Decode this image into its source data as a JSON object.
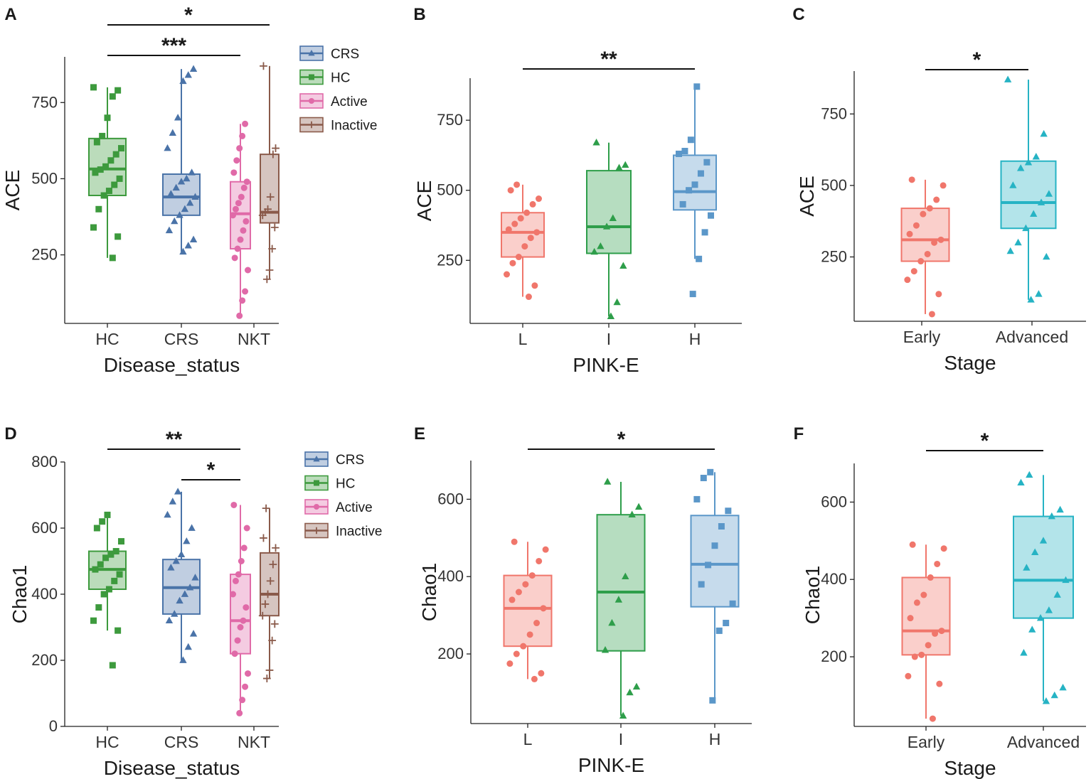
{
  "chart_data": [
    {
      "id": "A",
      "type": "box",
      "panel_label": "A",
      "xlabel": "Disease_status",
      "ylabel": "ACE",
      "categories": [
        "HC",
        "CRS",
        "NKT"
      ],
      "yticks": [
        250,
        500,
        750
      ],
      "ylim": [
        25,
        900
      ],
      "boxes": [
        {
          "category": "HC",
          "group": "HC",
          "q1": 445,
          "median": 532,
          "q3": 632,
          "whisker_low": 240,
          "whisker_high": 800,
          "points": [
            240,
            310,
            340,
            400,
            445,
            460,
            480,
            500,
            520,
            530,
            540,
            560,
            580,
            600,
            620,
            640,
            700,
            770,
            790,
            800
          ]
        },
        {
          "category": "CRS",
          "group": "CRS",
          "q1": 380,
          "median": 440,
          "q3": 515,
          "whisker_low": 260,
          "whisker_high": 860,
          "points": [
            260,
            280,
            300,
            330,
            360,
            380,
            400,
            420,
            440,
            450,
            470,
            490,
            500,
            520,
            600,
            650,
            700,
            820,
            840,
            860
          ]
        },
        {
          "category": "NKT",
          "group": "Active",
          "q1": 270,
          "median": 385,
          "q3": 490,
          "whisker_low": 50,
          "whisker_high": 680,
          "points": [
            50,
            100,
            130,
            200,
            240,
            270,
            300,
            330,
            360,
            380,
            400,
            420,
            440,
            470,
            490,
            520,
            560,
            600,
            640,
            680
          ]
        },
        {
          "category": "NKT",
          "group": "Inactive",
          "q1": 355,
          "median": 390,
          "q3": 580,
          "whisker_low": 170,
          "whisker_high": 870,
          "points": [
            170,
            200,
            270,
            340,
            380,
            390,
            400,
            440,
            580,
            600,
            870
          ]
        }
      ],
      "significance": [
        {
          "from": "HC",
          "to": "NKT-Inactive",
          "label": "*"
        },
        {
          "from": "HC",
          "to": "NKT-Active",
          "label": "***"
        }
      ],
      "legend": [
        {
          "name": "CRS",
          "color": "#4a73a8",
          "marker": "triangle"
        },
        {
          "name": "HC",
          "color": "#3d9a3d",
          "marker": "square"
        },
        {
          "name": "Active",
          "color": "#e06aa8",
          "marker": "circle"
        },
        {
          "name": "Inactive",
          "color": "#8a5a4a",
          "marker": "plus"
        }
      ]
    },
    {
      "id": "B",
      "type": "box",
      "panel_label": "B",
      "xlabel": "PINK-E",
      "ylabel": "ACE",
      "categories": [
        "L",
        "I",
        "H"
      ],
      "yticks": [
        250,
        500,
        750
      ],
      "ylim": [
        25,
        900
      ],
      "boxes": [
        {
          "category": "L",
          "group": "L",
          "q1": 262,
          "median": 350,
          "q3": 420,
          "whisker_low": 120,
          "whisker_high": 520,
          "points": [
            120,
            160,
            200,
            240,
            262,
            300,
            330,
            350,
            360,
            380,
            400,
            420,
            450,
            470,
            500,
            520
          ]
        },
        {
          "category": "I",
          "group": "I",
          "q1": 275,
          "median": 370,
          "q3": 570,
          "whisker_low": 50,
          "whisker_high": 670,
          "points": [
            50,
            100,
            230,
            280,
            300,
            370,
            400,
            580,
            590,
            670
          ]
        },
        {
          "category": "H",
          "group": "H",
          "q1": 430,
          "median": 495,
          "q3": 625,
          "whisker_low": 255,
          "whisker_high": 870,
          "points": [
            130,
            255,
            350,
            410,
            450,
            500,
            520,
            560,
            600,
            630,
            640,
            680,
            870
          ]
        }
      ],
      "significance": [
        {
          "from": "L",
          "to": "H",
          "label": "**"
        }
      ]
    },
    {
      "id": "C",
      "type": "box",
      "panel_label": "C",
      "xlabel": "Stage",
      "ylabel": "ACE",
      "categories": [
        "Early",
        "Advanced"
      ],
      "yticks": [
        250,
        500,
        750
      ],
      "ylim": [
        25,
        900
      ],
      "boxes": [
        {
          "category": "Early",
          "group": "Early",
          "q1": 235,
          "median": 310,
          "q3": 420,
          "whisker_low": 50,
          "whisker_high": 520,
          "points": [
            50,
            120,
            170,
            200,
            235,
            260,
            300,
            310,
            330,
            360,
            400,
            420,
            450,
            500,
            520
          ]
        },
        {
          "category": "Advanced",
          "group": "Advanced",
          "q1": 350,
          "median": 440,
          "q3": 585,
          "whisker_low": 100,
          "whisker_high": 870,
          "points": [
            100,
            120,
            250,
            270,
            300,
            350,
            400,
            440,
            470,
            500,
            560,
            580,
            600,
            680,
            870
          ]
        }
      ],
      "significance": [
        {
          "from": "Early",
          "to": "Advanced",
          "label": "*"
        }
      ]
    },
    {
      "id": "D",
      "type": "box",
      "panel_label": "D",
      "xlabel": "Disease_status",
      "ylabel": "Chao1",
      "categories": [
        "HC",
        "CRS",
        "NKT"
      ],
      "yticks": [
        0,
        200,
        400,
        600,
        800
      ],
      "ylim": [
        0,
        800
      ],
      "boxes": [
        {
          "category": "HC",
          "group": "HC",
          "q1": 415,
          "median": 475,
          "q3": 530,
          "whisker_low": 290,
          "whisker_high": 640,
          "points": [
            185,
            290,
            320,
            360,
            400,
            415,
            440,
            460,
            475,
            490,
            510,
            520,
            530,
            560,
            600,
            620,
            640
          ]
        },
        {
          "category": "CRS",
          "group": "CRS",
          "q1": 340,
          "median": 420,
          "q3": 505,
          "whisker_low": 200,
          "whisker_high": 710,
          "points": [
            200,
            240,
            280,
            320,
            340,
            380,
            400,
            420,
            450,
            480,
            500,
            520,
            560,
            600,
            640,
            680,
            710
          ]
        },
        {
          "category": "NKT",
          "group": "Active",
          "q1": 220,
          "median": 320,
          "q3": 460,
          "whisker_low": 40,
          "whisker_high": 670,
          "points": [
            40,
            80,
            120,
            160,
            220,
            260,
            300,
            320,
            360,
            400,
            440,
            460,
            500,
            540,
            600,
            670
          ]
        },
        {
          "category": "NKT",
          "group": "Inactive",
          "q1": 335,
          "median": 400,
          "q3": 525,
          "whisker_low": 145,
          "whisker_high": 660,
          "points": [
            145,
            170,
            260,
            310,
            335,
            370,
            400,
            440,
            490,
            540,
            570,
            660
          ]
        }
      ],
      "significance": [
        {
          "from": "HC",
          "to": "NKT-Active",
          "label": "**"
        },
        {
          "from": "CRS",
          "to": "NKT-Active",
          "label": "*"
        }
      ],
      "legend": [
        {
          "name": "CRS",
          "color": "#4a73a8",
          "marker": "triangle"
        },
        {
          "name": "HC",
          "color": "#3d9a3d",
          "marker": "square"
        },
        {
          "name": "Active",
          "color": "#e06aa8",
          "marker": "circle"
        },
        {
          "name": "Inactive",
          "color": "#8a5a4a",
          "marker": "plus"
        }
      ]
    },
    {
      "id": "E",
      "type": "box",
      "panel_label": "E",
      "xlabel": "PINK-E",
      "ylabel": "Chao1",
      "categories": [
        "L",
        "I",
        "H"
      ],
      "yticks": [
        200,
        400,
        600
      ],
      "ylim": [
        20,
        700
      ],
      "boxes": [
        {
          "category": "L",
          "group": "L",
          "q1": 220,
          "median": 318,
          "q3": 403,
          "whisker_low": 135,
          "whisker_high": 490,
          "points": [
            135,
            150,
            175,
            200,
            220,
            250,
            280,
            318,
            340,
            360,
            380,
            403,
            440,
            470,
            490
          ]
        },
        {
          "category": "I",
          "group": "I",
          "q1": 208,
          "median": 360,
          "q3": 560,
          "whisker_low": 40,
          "whisker_high": 645,
          "points": [
            40,
            100,
            115,
            210,
            280,
            340,
            400,
            560,
            580,
            645
          ]
        },
        {
          "category": "H",
          "group": "H",
          "q1": 322,
          "median": 432,
          "q3": 558,
          "whisker_low": 80,
          "whisker_high": 670,
          "points": [
            80,
            260,
            280,
            330,
            380,
            430,
            480,
            530,
            570,
            600,
            655,
            670
          ]
        }
      ],
      "significance": [
        {
          "from": "L",
          "to": "H",
          "label": "*"
        }
      ]
    },
    {
      "id": "F",
      "type": "box",
      "panel_label": "F",
      "xlabel": "Stage",
      "ylabel": "Chao1",
      "categories": [
        "Early",
        "Advanced"
      ],
      "yticks": [
        200,
        400,
        600
      ],
      "ylim": [
        20,
        700
      ],
      "boxes": [
        {
          "category": "Early",
          "group": "Early",
          "q1": 205,
          "median": 267,
          "q3": 405,
          "whisker_low": 40,
          "whisker_high": 490,
          "points": [
            40,
            130,
            150,
            200,
            205,
            230,
            260,
            267,
            300,
            340,
            360,
            405,
            440,
            480,
            490
          ]
        },
        {
          "category": "Advanced",
          "group": "Advanced",
          "q1": 300,
          "median": 398,
          "q3": 563,
          "whisker_low": 85,
          "whisker_high": 670,
          "points": [
            85,
            100,
            120,
            210,
            270,
            300,
            320,
            360,
            398,
            430,
            470,
            500,
            563,
            580,
            650,
            670
          ]
        }
      ],
      "significance": [
        {
          "from": "Early",
          "to": "Advanced",
          "label": "*"
        }
      ]
    }
  ],
  "colors": {
    "HC": "#3d9a3d",
    "CRS": "#4a73a8",
    "Active": "#e06aa8",
    "Inactive": "#8a5a4a",
    "L": "#f0766b",
    "I": "#2e9e4a",
    "H": "#5b97c9",
    "Early": "#f0766b",
    "Advanced": "#26b3c4"
  },
  "markers": {
    "HC": "square",
    "CRS": "triangle",
    "Active": "circle",
    "Inactive": "plus",
    "L": "circle",
    "I": "triangle",
    "H": "square",
    "Early": "circle",
    "Advanced": "triangle"
  }
}
